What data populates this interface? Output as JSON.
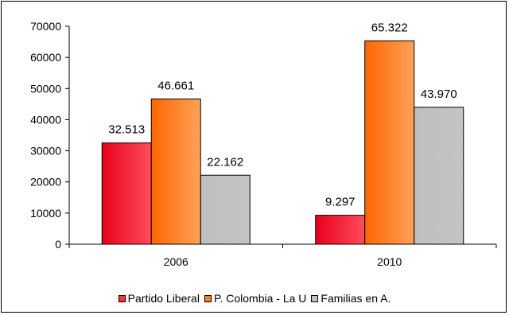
{
  "chart_data": {
    "type": "bar",
    "categories": [
      "2006",
      "2010"
    ],
    "series": [
      {
        "name": "Partido Liberal",
        "values": [
          32513,
          9297
        ],
        "labels": [
          "32.513",
          "9.297"
        ],
        "color": "#ff3333"
      },
      {
        "name": "P. Colombia - La U",
        "values": [
          46661,
          65322
        ],
        "labels": [
          "46.661",
          "65.322"
        ],
        "color": "#ff7f1a"
      },
      {
        "name": "Familias en A.",
        "values": [
          22162,
          43970
        ],
        "labels": [
          "22.162",
          "43.970"
        ],
        "color": "#c0c0c0"
      }
    ],
    "yticks": [
      "0",
      "10000",
      "20000",
      "30000",
      "40000",
      "50000",
      "60000",
      "70000"
    ],
    "ylim": [
      0,
      70000
    ],
    "grid": false,
    "legend_position": "bottom"
  }
}
